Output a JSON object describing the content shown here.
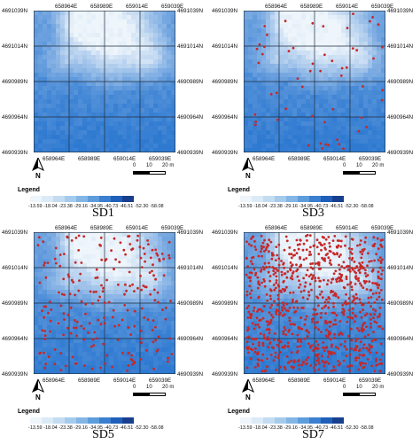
{
  "panels": [
    {
      "id": "SD1",
      "label": "SD1",
      "top_coords": [
        "658964E",
        "658989E",
        "659014E",
        "659039E"
      ],
      "bottom_coords": [
        "658964E",
        "658989E",
        "659014E",
        "659039E"
      ],
      "left_coords": [
        "4691039N",
        "4691014N",
        "4690989N",
        "4690964N",
        "4690939N"
      ],
      "right_coords": [
        "4691039N",
        "4691014N",
        "4690989N",
        "4690964N",
        "4690939N"
      ],
      "sample_points": 0
    },
    {
      "id": "SD3",
      "label": "SD3",
      "top_coords": [
        "658964E",
        "658989E",
        "659014E",
        "659039E"
      ],
      "bottom_coords": [
        "658964E",
        "658989E",
        "659014E",
        "659039E"
      ],
      "left_coords": [
        "4691039N",
        "4691014N",
        "4690989N",
        "4690964N",
        "4690939N"
      ],
      "right_coords": [
        "4691039N",
        "4691014N",
        "4690989N",
        "4690964N",
        "4690939N"
      ],
      "sample_points": 55
    },
    {
      "id": "SD5",
      "label": "SD5",
      "top_coords": [
        "658964E",
        "658989E",
        "659014E",
        "659039E"
      ],
      "bottom_coords": [
        "658964E",
        "658989E",
        "659014E",
        "659039E"
      ],
      "left_coords": [
        "4691039N",
        "4691014N",
        "4690989N",
        "4690964N",
        "4690939N"
      ],
      "right_coords": [
        "4691039N",
        "4691014N",
        "4690989N",
        "4690964N",
        "4690939N"
      ],
      "sample_points": 230
    },
    {
      "id": "SD7",
      "label": "SD7",
      "top_coords": [
        "658964E",
        "658989E",
        "659014E",
        "659039E"
      ],
      "bottom_coords": [
        "658964E",
        "658989E",
        "659014E",
        "659039E"
      ],
      "left_coords": [
        "4691039N",
        "4691014N",
        "4690989N",
        "4690964N",
        "4690939N"
      ],
      "right_coords": [
        "4691039N",
        "4691014N",
        "4690989N",
        "4690964N",
        "4690939N"
      ],
      "sample_points": 900
    }
  ],
  "legend": {
    "title": "Legend",
    "labels": "-13.59 -18.04 -23.38 -29.16 -34.95 -40.73 -46.51 -52.30 -58.08",
    "colors": [
      "#eef5fb",
      "#dbeaf7",
      "#c3dcf1",
      "#a5cbec",
      "#84b6e5",
      "#5e9ddc",
      "#3b7fd0",
      "#1f5fba",
      "#173f8e"
    ]
  },
  "scale_bar": {
    "ticks": [
      "0",
      "10",
      "20 m"
    ]
  },
  "north_arrow": {
    "label": "N"
  },
  "colors": {
    "point": "#c62828",
    "grid": "#1f2d3d",
    "surface_light": "#eef5fb",
    "surface_dark": "#2f7ad1"
  }
}
